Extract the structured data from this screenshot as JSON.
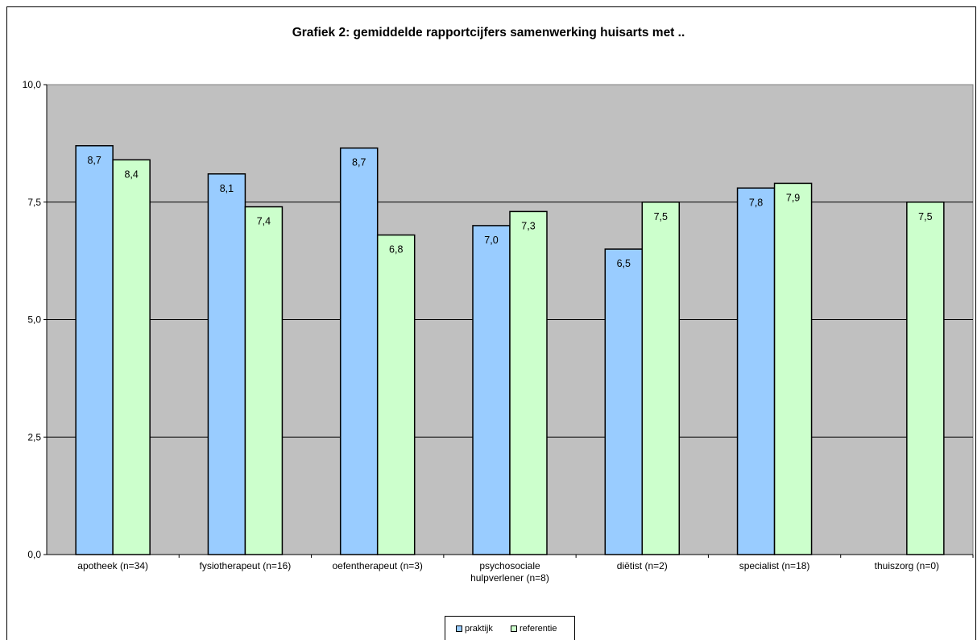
{
  "chart_data": {
    "type": "bar",
    "title": "Grafiek 2: gemiddelde rapportcijfers samenwerking huisarts met ..",
    "xlabel": "",
    "ylabel": "",
    "ylim": [
      0,
      10
    ],
    "yticks": [
      "0,0",
      "2,5",
      "5,0",
      "7,5",
      "10,0"
    ],
    "ytick_values": [
      0,
      2.5,
      5,
      7.5,
      10
    ],
    "grid": true,
    "legend_position": "bottom",
    "categories": [
      [
        "apotheek (n=34)"
      ],
      [
        "fysiotherapeut (n=16)"
      ],
      [
        "oefentherapeut (n=3)"
      ],
      [
        "psychosociale",
        "hulpverlener (n=8)"
      ],
      [
        "diëtist (n=2)"
      ],
      [
        "specialist (n=18)"
      ],
      [
        "thuiszorg (n=0)"
      ]
    ],
    "series": [
      {
        "name": "praktijk",
        "color": "#99ccff",
        "values": [
          8.7,
          8.1,
          8.65,
          7.0,
          6.5,
          7.8,
          null
        ],
        "labels": [
          "8,7",
          "8,1",
          "8,7",
          "7,0",
          "6,5",
          "7,8",
          null
        ]
      },
      {
        "name": "referentie",
        "color": "#ccffcc",
        "values": [
          8.4,
          7.4,
          6.8,
          7.3,
          7.5,
          7.9,
          7.5
        ],
        "labels": [
          "8,4",
          "7,4",
          "6,8",
          "7,3",
          "7,5",
          "7,9",
          "7,5"
        ]
      }
    ],
    "plot_background": "#c0c0c0"
  }
}
